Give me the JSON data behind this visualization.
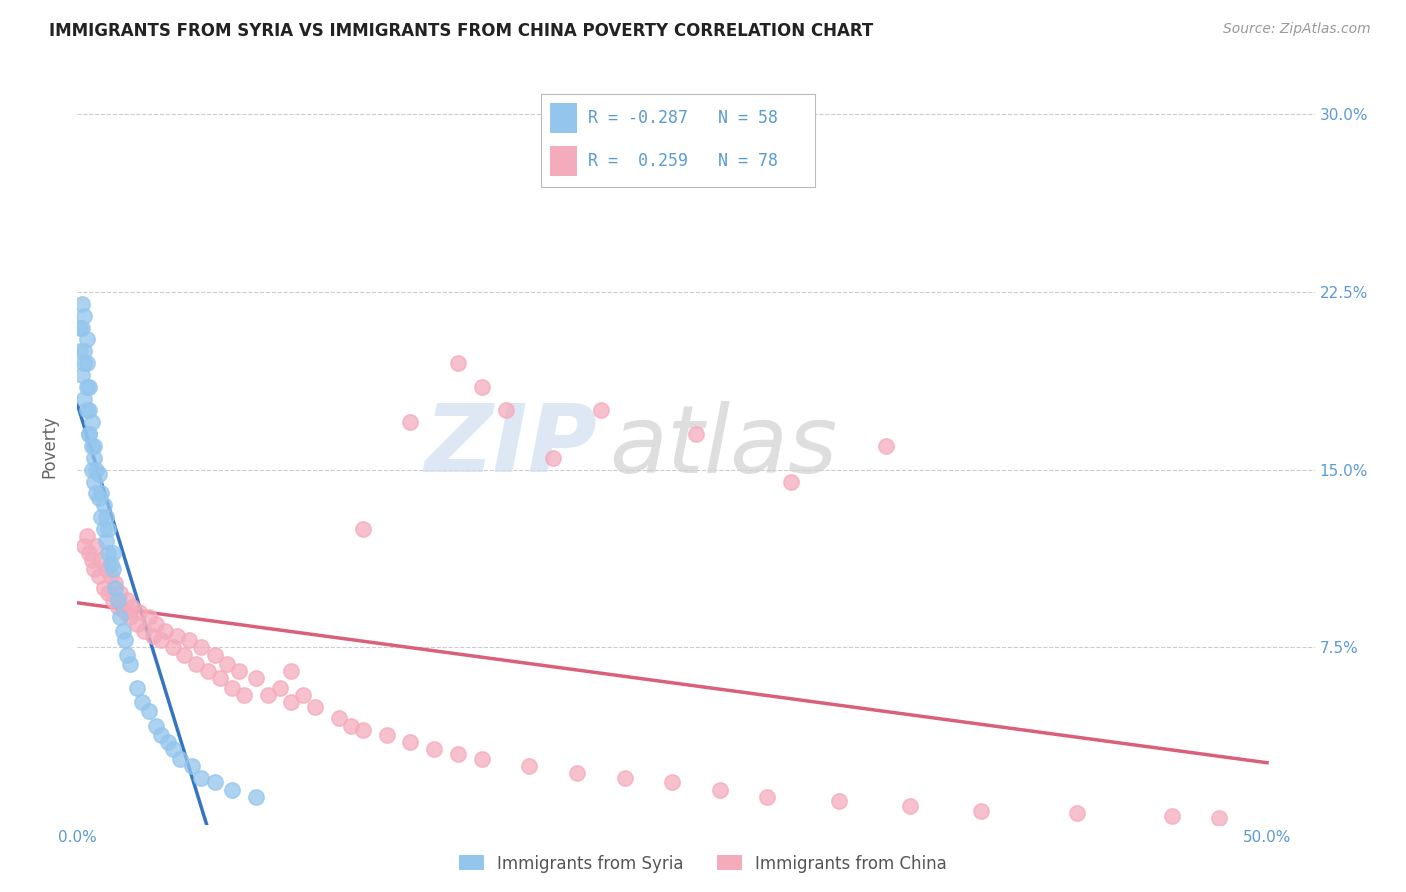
{
  "title": "IMMIGRANTS FROM SYRIA VS IMMIGRANTS FROM CHINA POVERTY CORRELATION CHART",
  "source": "Source: ZipAtlas.com",
  "ylabel": "Poverty",
  "watermark_zip": "ZIP",
  "watermark_atlas": "atlas",
  "legend": {
    "syria_r": "-0.287",
    "syria_n": "58",
    "china_r": "0.259",
    "china_n": "78"
  },
  "syria_color": "#93C5ED",
  "china_color": "#F4ABBC",
  "syria_line_color": "#3575C0",
  "china_line_color": "#D9607A",
  "axis_label_color": "#5B9BD5",
  "background_color": "#FFFFFF",
  "syria_x": [
    0.001,
    0.001,
    0.002,
    0.002,
    0.002,
    0.003,
    0.003,
    0.003,
    0.003,
    0.004,
    0.004,
    0.004,
    0.004,
    0.005,
    0.005,
    0.005,
    0.005,
    0.006,
    0.006,
    0.006,
    0.007,
    0.007,
    0.007,
    0.008,
    0.008,
    0.009,
    0.009,
    0.01,
    0.01,
    0.011,
    0.011,
    0.012,
    0.012,
    0.013,
    0.013,
    0.014,
    0.015,
    0.015,
    0.016,
    0.017,
    0.018,
    0.019,
    0.02,
    0.021,
    0.022,
    0.025,
    0.027,
    0.03,
    0.033,
    0.035,
    0.038,
    0.04,
    0.043,
    0.048,
    0.052,
    0.058,
    0.065,
    0.075
  ],
  "syria_y": [
    0.2,
    0.21,
    0.19,
    0.21,
    0.22,
    0.18,
    0.2,
    0.215,
    0.195,
    0.175,
    0.185,
    0.195,
    0.205,
    0.165,
    0.175,
    0.185,
    0.165,
    0.16,
    0.17,
    0.15,
    0.155,
    0.145,
    0.16,
    0.14,
    0.15,
    0.138,
    0.148,
    0.13,
    0.14,
    0.125,
    0.135,
    0.12,
    0.13,
    0.115,
    0.125,
    0.11,
    0.108,
    0.115,
    0.1,
    0.095,
    0.088,
    0.082,
    0.078,
    0.072,
    0.068,
    0.058,
    0.052,
    0.048,
    0.042,
    0.038,
    0.035,
    0.032,
    0.028,
    0.025,
    0.02,
    0.018,
    0.015,
    0.012
  ],
  "china_x": [
    0.003,
    0.004,
    0.005,
    0.006,
    0.007,
    0.008,
    0.009,
    0.01,
    0.011,
    0.012,
    0.013,
    0.014,
    0.015,
    0.016,
    0.017,
    0.018,
    0.02,
    0.021,
    0.022,
    0.023,
    0.025,
    0.026,
    0.028,
    0.03,
    0.032,
    0.033,
    0.035,
    0.037,
    0.04,
    0.042,
    0.045,
    0.047,
    0.05,
    0.052,
    0.055,
    0.058,
    0.06,
    0.063,
    0.065,
    0.068,
    0.07,
    0.075,
    0.08,
    0.085,
    0.09,
    0.095,
    0.1,
    0.11,
    0.115,
    0.12,
    0.13,
    0.14,
    0.15,
    0.16,
    0.17,
    0.19,
    0.21,
    0.23,
    0.25,
    0.27,
    0.29,
    0.32,
    0.35,
    0.38,
    0.42,
    0.46,
    0.48,
    0.16,
    0.18,
    0.22,
    0.26,
    0.2,
    0.17,
    0.14,
    0.3,
    0.34,
    0.12,
    0.09
  ],
  "china_y": [
    0.118,
    0.122,
    0.115,
    0.112,
    0.108,
    0.118,
    0.105,
    0.112,
    0.1,
    0.108,
    0.098,
    0.105,
    0.095,
    0.102,
    0.092,
    0.098,
    0.09,
    0.095,
    0.088,
    0.092,
    0.085,
    0.09,
    0.082,
    0.088,
    0.08,
    0.085,
    0.078,
    0.082,
    0.075,
    0.08,
    0.072,
    0.078,
    0.068,
    0.075,
    0.065,
    0.072,
    0.062,
    0.068,
    0.058,
    0.065,
    0.055,
    0.062,
    0.055,
    0.058,
    0.052,
    0.055,
    0.05,
    0.045,
    0.042,
    0.04,
    0.038,
    0.035,
    0.032,
    0.03,
    0.028,
    0.025,
    0.022,
    0.02,
    0.018,
    0.015,
    0.012,
    0.01,
    0.008,
    0.006,
    0.005,
    0.004,
    0.003,
    0.195,
    0.175,
    0.175,
    0.165,
    0.155,
    0.185,
    0.17,
    0.145,
    0.16,
    0.125,
    0.065
  ],
  "xlim": [
    0.0,
    0.52
  ],
  "ylim": [
    0.0,
    0.32
  ],
  "x_ticks": [
    0.0,
    0.1,
    0.2,
    0.3,
    0.4,
    0.5
  ],
  "y_ticks_right": [
    0.075,
    0.15,
    0.225,
    0.3
  ],
  "y_tick_labels_right": [
    "7.5%",
    "15.0%",
    "22.5%",
    "30.0%"
  ],
  "x_tick_labels_show": [
    "0.0%",
    "50.0%"
  ],
  "grid_color": "#CCCCCC",
  "title_fontsize": 12,
  "tick_fontsize": 11
}
